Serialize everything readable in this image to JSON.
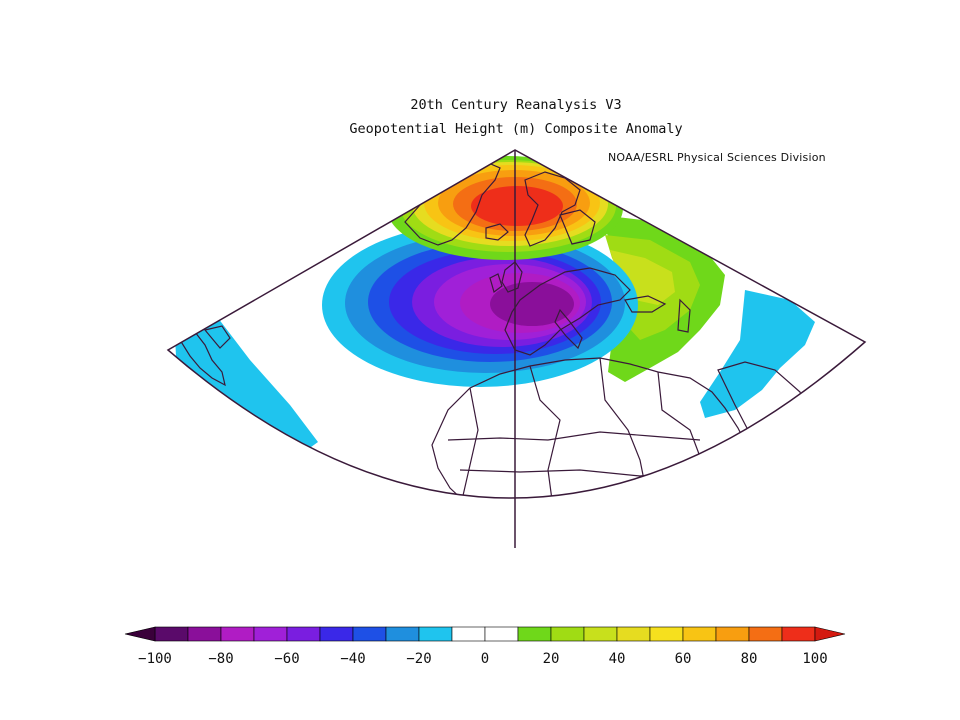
{
  "title_lines": [
    "20th Century Reanalysis V3",
    "Geopotential Height (m) Composite Anomaly"
  ],
  "credit": "NOAA/ESRL Physical Sciences Division",
  "colorbar": {
    "colors": [
      "#5a0a6a",
      "#8a0f9a",
      "#b01cc4",
      "#a020d8",
      "#7a1ee0",
      "#3a28e8",
      "#1e50e6",
      "#1f8fde",
      "#1fc4ee",
      "#ffffff",
      "#ffffff",
      "#6fd81a",
      "#a0dc14",
      "#c8e01c",
      "#e6dc20",
      "#f6e01e",
      "#f8c414",
      "#f89e10",
      "#f46e14",
      "#ee2e1a"
    ],
    "tick_labels": [
      "-100",
      "-80",
      "-60",
      "-40",
      "-20",
      "0",
      "20",
      "40",
      "60",
      "80",
      "100"
    ],
    "tick_values": [
      -100,
      -80,
      -60,
      -40,
      -20,
      0,
      20,
      40,
      60,
      80,
      100
    ],
    "range": [
      -100,
      100
    ],
    "step": 10
  },
  "map": {
    "projection": "conic sector",
    "fields": [
      {
        "name": "positive-anomaly-greenland-scandinavia",
        "peak": 100
      },
      {
        "name": "negative-anomaly-north-atlantic-europe",
        "peak": -100
      },
      {
        "name": "positive-anomaly-north-africa-middle-east",
        "peak": 40
      },
      {
        "name": "negative-anomaly-subtropical-atlantic",
        "peak": -20
      },
      {
        "name": "negative-anomaly-red-sea-arabia",
        "peak": -20
      }
    ]
  }
}
